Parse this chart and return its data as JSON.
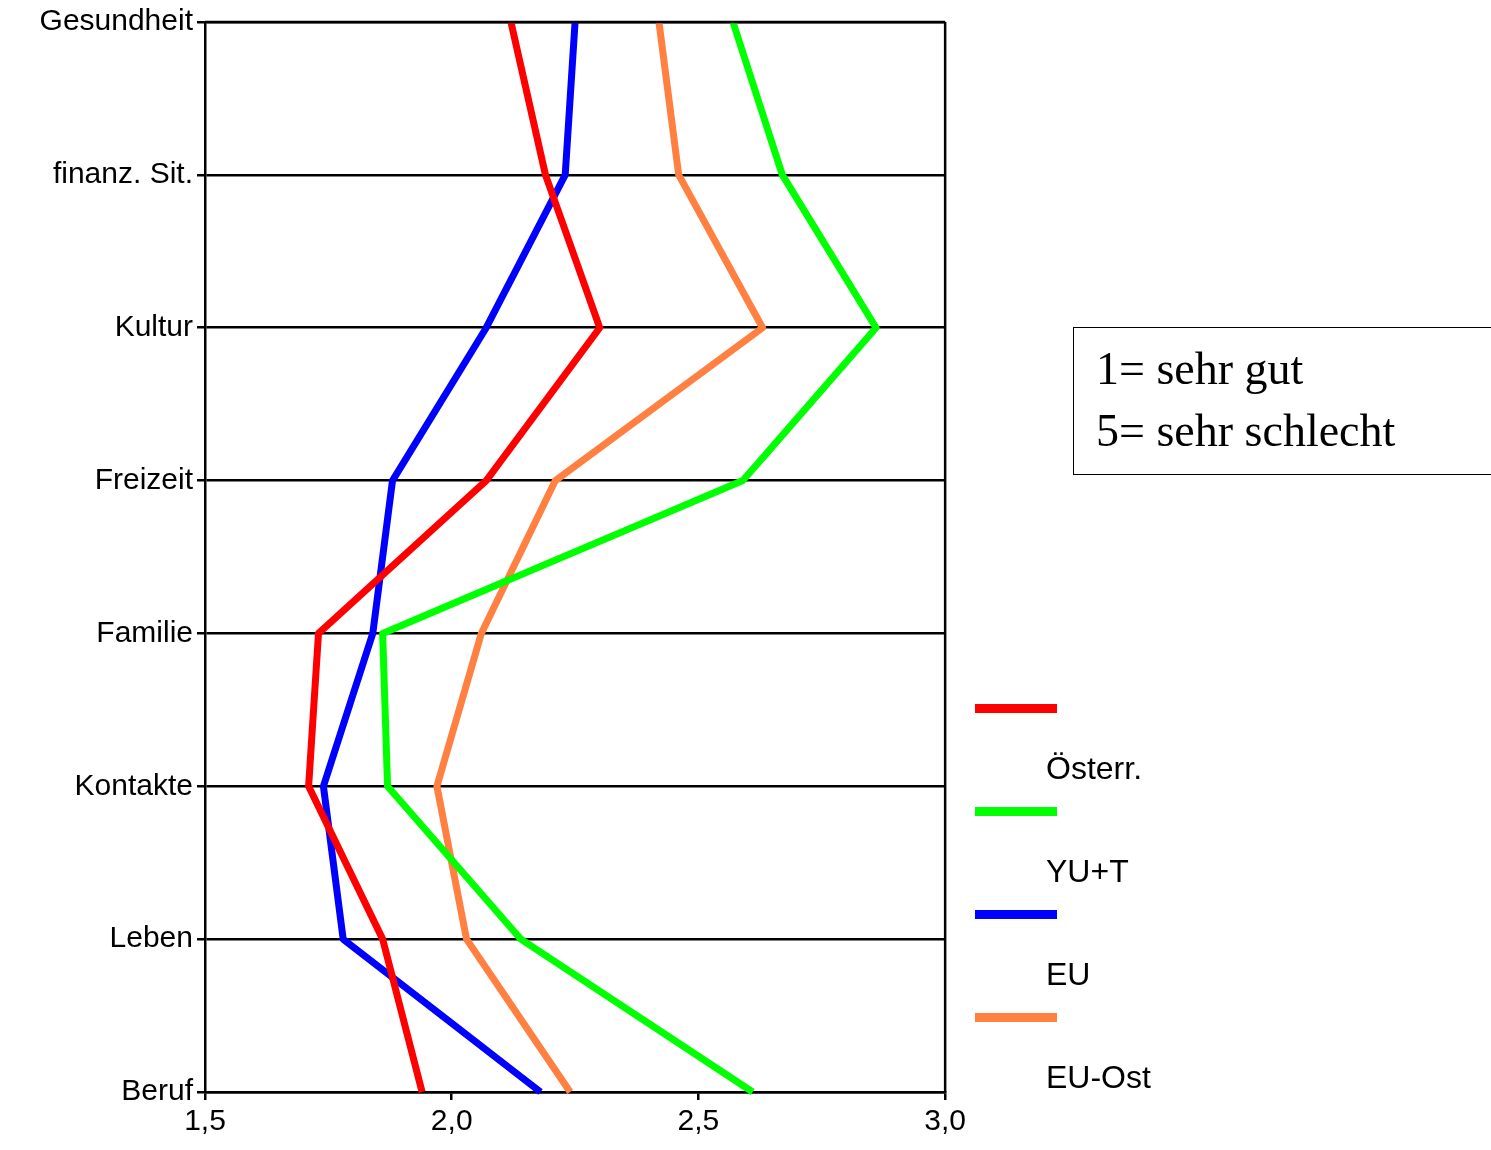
{
  "chart_data": {
    "type": "line",
    "categories": [
      "Gesundheit",
      "finanz. Sit.",
      "Kultur",
      "Freizeit",
      "Familie",
      "Kontakte",
      "Leben",
      "Beruf"
    ],
    "series": [
      {
        "name": "Österr.",
        "color": "#ff0000",
        "values": [
          2.12,
          2.19,
          2.3,
          2.07,
          1.73,
          1.71,
          1.86,
          1.94
        ]
      },
      {
        "name": "YU+T",
        "color": "#00ff00",
        "values": [
          2.57,
          2.67,
          2.86,
          2.59,
          1.86,
          1.87,
          2.14,
          2.61
        ]
      },
      {
        "name": "EU",
        "color": "#0000ff",
        "values": [
          2.25,
          2.23,
          2.07,
          1.88,
          1.84,
          1.74,
          1.78,
          2.18
        ]
      },
      {
        "name": "EU-Ost",
        "color": "#ff8040",
        "values": [
          2.42,
          2.46,
          2.63,
          2.21,
          2.06,
          1.97,
          2.03,
          2.24
        ]
      }
    ],
    "xlim": [
      1.5,
      3.0
    ],
    "xticks": [
      {
        "value": 1.5,
        "label": "1,5"
      },
      {
        "value": 2.0,
        "label": "2,0"
      },
      {
        "value": 2.5,
        "label": "2,5"
      },
      {
        "value": 3.0,
        "label": "3,0"
      }
    ],
    "orientation": "horizontal",
    "grid": "y",
    "legend": "bottom right",
    "marker": "none",
    "line_style": "solid",
    "annotations": [
      "1= sehr gut",
      "5= sehr schlecht"
    ]
  }
}
